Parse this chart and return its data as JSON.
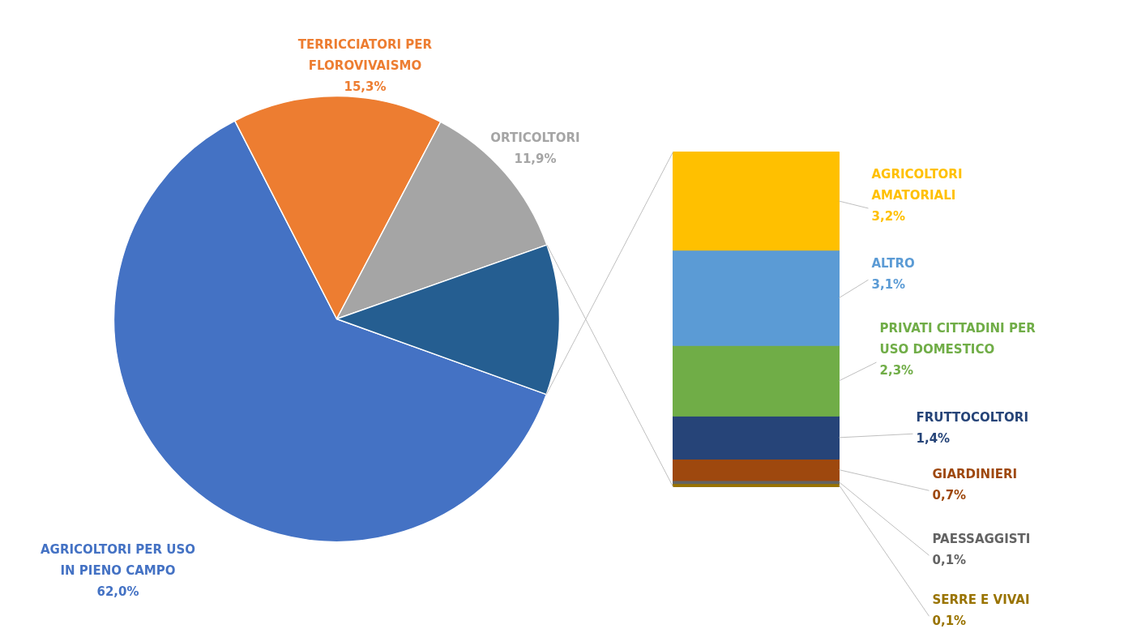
{
  "chart_data": [
    {
      "type": "pie",
      "categories": [
        "AGRICOLTORI PER USO IN PIENO CAMPO",
        "TERRICCIATORI PER FLOROVIVAISMO",
        "ORTICOLTORI",
        null
      ],
      "values": [
        62.0,
        15.3,
        11.9,
        10.9
      ],
      "colors": [
        "#4472c4",
        "#ed7d31",
        "#a5a5a5",
        "#255e91"
      ],
      "value_labels": [
        "62,0%",
        "15,3%",
        "11,9%",
        null
      ]
    },
    {
      "type": "bar",
      "stacked": true,
      "categories": [
        null
      ],
      "tick_labels": false,
      "series": [
        {
          "name": "SERRE E VIVAI",
          "color": "#997300",
          "values": [
            0.1
          ],
          "value_labels": [
            "0,1%"
          ]
        },
        {
          "name": "PAESSAGGISTI",
          "color": "#636363",
          "values": [
            0.1
          ],
          "value_labels": [
            "0,1%"
          ]
        },
        {
          "name": "GIARDINIERI",
          "color": "#9e480e",
          "values": [
            0.7
          ],
          "value_labels": [
            "0,7%"
          ]
        },
        {
          "name": "FRUTTOCOLTORI",
          "color": "#264478",
          "values": [
            1.4
          ],
          "value_labels": [
            "1,4%"
          ]
        },
        {
          "name": "PRIVATI CITTADINI PER USO DOMESTICO",
          "color": "#70ad47",
          "values": [
            2.3
          ],
          "value_labels": [
            "2,3%"
          ]
        },
        {
          "name": "ALTRO",
          "color": "#5b9bd5",
          "values": [
            3.1
          ],
          "value_labels": [
            "3,1%"
          ]
        },
        {
          "name": "AGRICOLTORI AMATORIALI",
          "color": "#ffc000",
          "values": [
            3.2
          ],
          "value_labels": [
            "3,2%"
          ]
        }
      ]
    }
  ]
}
